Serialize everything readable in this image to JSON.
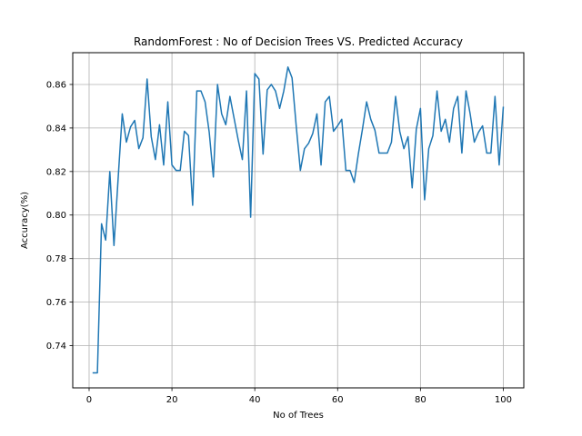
{
  "chart_data": {
    "type": "line",
    "title": "RandomForest : No of Decision Trees VS. Predicted Accuracy",
    "xlabel": "No of Trees",
    "ylabel": "Accuracy(%)",
    "xlim": [
      -3.95,
      104.95
    ],
    "ylim": [
      0.7206,
      0.8746
    ],
    "grid": true,
    "xticks": [
      0,
      20,
      40,
      60,
      80,
      100
    ],
    "yticks": [
      0.74,
      0.76,
      0.78,
      0.8,
      0.82,
      0.84,
      0.86
    ],
    "xtick_labels": [
      "0",
      "20",
      "40",
      "60",
      "80",
      "100"
    ],
    "ytick_labels": [
      "0.74",
      "0.76",
      "0.78",
      "0.80",
      "0.82",
      "0.84",
      "0.86"
    ],
    "series_color": "#1f77b4",
    "series": [
      {
        "x": [
          1,
          2,
          3,
          4,
          5,
          6,
          7,
          8,
          9,
          10,
          11,
          12,
          13,
          14,
          15,
          16,
          17,
          18,
          19,
          20,
          21,
          22,
          23,
          24,
          25,
          26,
          27,
          28,
          29,
          30,
          31,
          32,
          33,
          34,
          35,
          36,
          37,
          38,
          39,
          40,
          41,
          42,
          43,
          44,
          45,
          46,
          47,
          48,
          49,
          50,
          51,
          52,
          53,
          54,
          55,
          56,
          57,
          58,
          59,
          60,
          61,
          62,
          63,
          64,
          65,
          66,
          67,
          68,
          69,
          70,
          71,
          72,
          73,
          74,
          75,
          76,
          77,
          78,
          79,
          80,
          81,
          82,
          83,
          84,
          85,
          86,
          87,
          88,
          89,
          90,
          91,
          92,
          93,
          94,
          95,
          96,
          97,
          98,
          99,
          100
        ],
        "values": [
          0.7275,
          0.7275,
          0.796,
          0.7885,
          0.82,
          0.786,
          0.8165,
          0.8465,
          0.8335,
          0.8405,
          0.8435,
          0.8305,
          0.8355,
          0.8625,
          0.836,
          0.8255,
          0.8415,
          0.823,
          0.852,
          0.823,
          0.8205,
          0.8205,
          0.8385,
          0.8365,
          0.8045,
          0.857,
          0.857,
          0.852,
          0.838,
          0.8175,
          0.86,
          0.8465,
          0.8415,
          0.8545,
          0.8445,
          0.8345,
          0.8255,
          0.857,
          0.799,
          0.865,
          0.8625,
          0.828,
          0.8575,
          0.86,
          0.857,
          0.849,
          0.857,
          0.868,
          0.863,
          0.841,
          0.8205,
          0.8305,
          0.833,
          0.8375,
          0.8465,
          0.823,
          0.852,
          0.8545,
          0.8385,
          0.841,
          0.844,
          0.8205,
          0.8205,
          0.815,
          0.828,
          0.8395,
          0.852,
          0.844,
          0.839,
          0.8285,
          0.8285,
          0.8285,
          0.8335,
          0.8545,
          0.8385,
          0.8305,
          0.836,
          0.8125,
          0.8395,
          0.849,
          0.807,
          0.8305,
          0.8365,
          0.857,
          0.8385,
          0.844,
          0.8335,
          0.849,
          0.8545,
          0.8285,
          0.857,
          0.8465,
          0.8335,
          0.838,
          0.841,
          0.8285,
          0.8285,
          0.8545,
          0.823,
          0.8495
        ]
      }
    ]
  }
}
